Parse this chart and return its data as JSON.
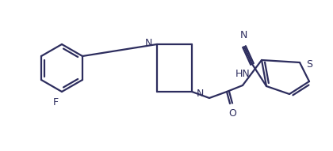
{
  "bond_color": "#2d2d5e",
  "background": "#ffffff",
  "text_color": "#2d2d5e",
  "lw": 1.6,
  "label_N_top": "N",
  "label_N_bot": "N",
  "label_HN": "HN",
  "label_S": "S",
  "label_F": "F",
  "label_O": "O",
  "label_CN_N": "N"
}
